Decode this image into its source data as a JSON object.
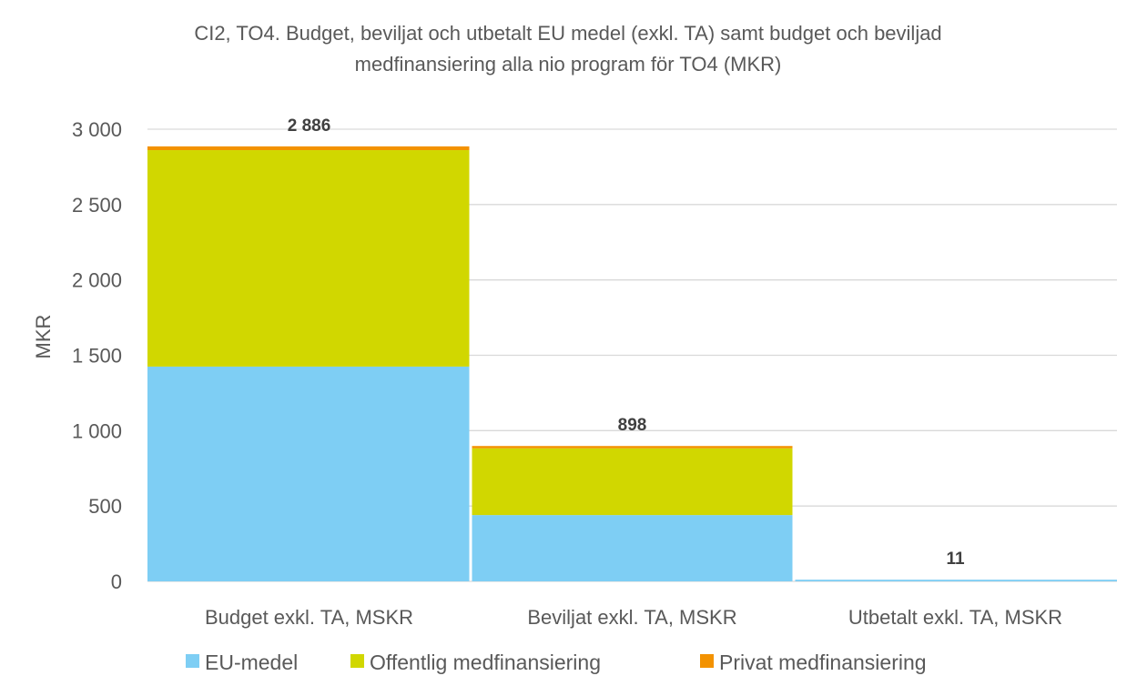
{
  "chart_data": {
    "type": "bar",
    "stacked": true,
    "title_line1": "CI2, TO4. Budget, beviljat och utbetalt EU medel (exkl. TA) samt budget och beviljad",
    "title_line2": "medfinansiering alla nio program för TO4 (MKR)",
    "ylabel": "MKR",
    "xlabel": "",
    "ylim": [
      0,
      3000
    ],
    "yticks": [
      0,
      500,
      1000,
      1500,
      2000,
      2500,
      3000
    ],
    "ytick_labels": [
      "0",
      "500",
      "1 000",
      "1 500",
      "2 000",
      "2 500",
      "3 000"
    ],
    "categories": [
      "Budget exkl. TA, MSKR",
      "Beviljat exkl. TA, MSKR",
      "Utbetalt exkl. TA, MSKR"
    ],
    "series": [
      {
        "name": "EU-medel",
        "color": "#7ECEF4",
        "values": [
          1425,
          440,
          11
        ]
      },
      {
        "name": "Offentlig medfinansiering",
        "color": "#D1D700",
        "values": [
          1436,
          443,
          0
        ]
      },
      {
        "name": "Privat medfinansiering",
        "color": "#F39200",
        "values": [
          25,
          15,
          0
        ]
      }
    ],
    "totals": [
      "2 886",
      "898",
      "11"
    ],
    "totals_values": [
      2886,
      898,
      11
    ],
    "grid": true,
    "legend_position": "bottom"
  }
}
